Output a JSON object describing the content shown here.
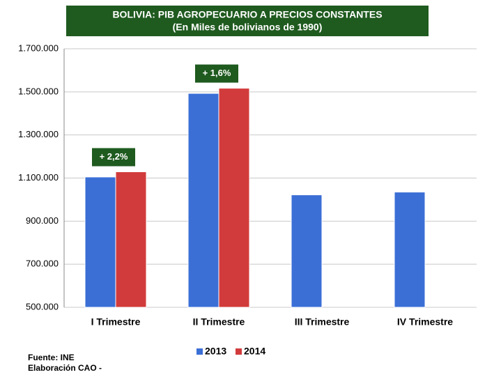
{
  "chart_data": {
    "type": "bar",
    "title": "BOLIVIA:  PIB AGROPECUARIO  A PRECIOS  CONSTANTES",
    "subtitle": "(En Miles de bolivianos  de 1990)",
    "categories": [
      "I   Trimestre",
      "II  Trimestre",
      "III Trimestre",
      "IV Trimestre"
    ],
    "series": [
      {
        "name": "2013",
        "color": "#3b6fd6",
        "values": [
          1105000,
          1493000,
          1022000,
          1035000
        ]
      },
      {
        "name": "2014",
        "color": "#d23b3b",
        "values": [
          1129000,
          1517000,
          null,
          null
        ]
      }
    ],
    "ylim": [
      500000,
      1700000
    ],
    "yticks": [
      {
        "value": 500000,
        "label": "500.000"
      },
      {
        "value": 700000,
        "label": "700.000"
      },
      {
        "value": 900000,
        "label": "900.000"
      },
      {
        "value": 1100000,
        "label": "1.100.000"
      },
      {
        "value": 1300000,
        "label": "1.300.000"
      },
      {
        "value": 1500000,
        "label": "1.500.000"
      },
      {
        "value": 1700000,
        "label": "1.700.000"
      }
    ],
    "grid": true,
    "annotations": [
      "+ 2,2%",
      "+ 1,6%"
    ],
    "source": [
      "Fuente: INE",
      "Elaboración CAO -"
    ]
  }
}
